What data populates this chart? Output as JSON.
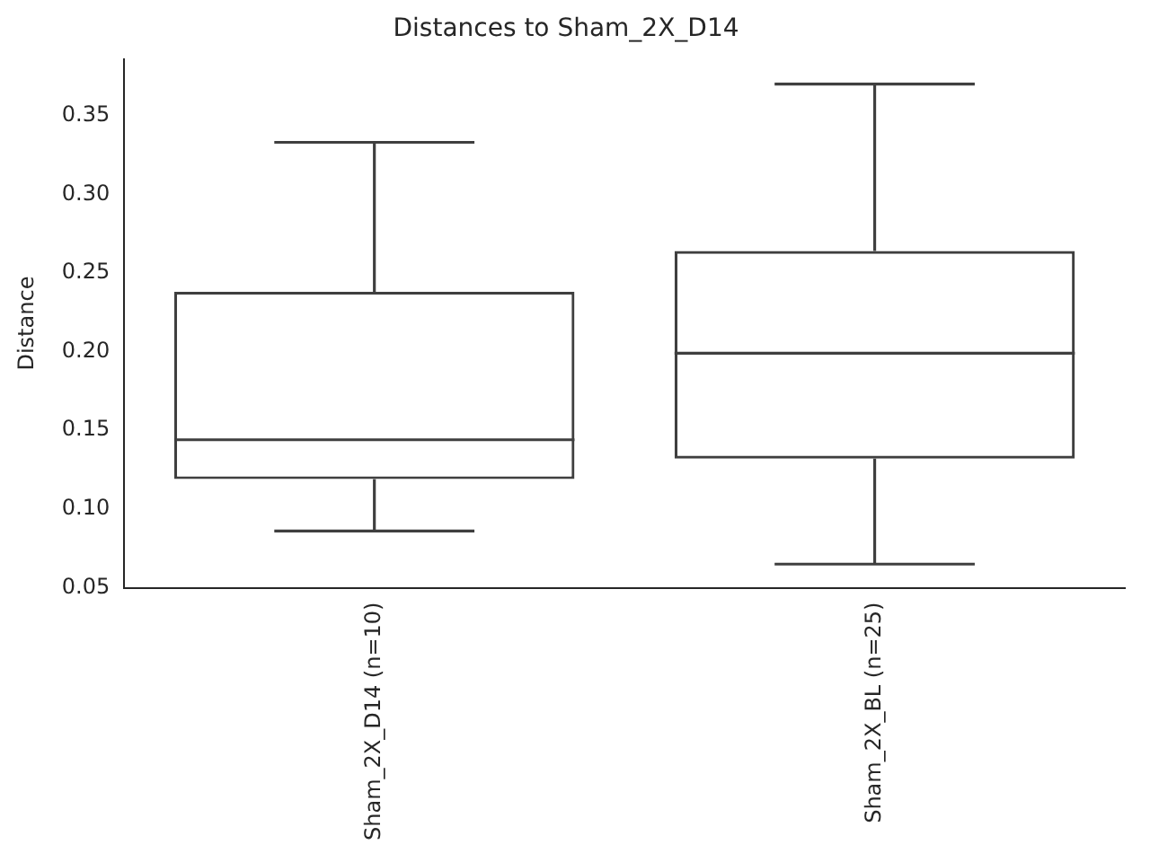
{
  "chart_data": {
    "type": "box",
    "title": "Distances to Sham_2X_D14",
    "ylabel": "Distance",
    "categories": [
      "Sham_2X_D14 (n=10)",
      "Sham_2X_BL (n=25)"
    ],
    "color": "#3f3f3f",
    "boxes": [
      {
        "low": 0.086,
        "q1": 0.119,
        "median": 0.144,
        "q3": 0.238,
        "high": 0.333
      },
      {
        "low": 0.065,
        "q1": 0.132,
        "median": 0.199,
        "q3": 0.264,
        "high": 0.37
      }
    ],
    "ylim": [
      0.05,
      0.386
    ],
    "yticks": [
      {
        "value": 0.05,
        "label": "0.05"
      },
      {
        "value": 0.1,
        "label": "0.10"
      },
      {
        "value": 0.15,
        "label": "0.15"
      },
      {
        "value": 0.2,
        "label": "0.20"
      },
      {
        "value": 0.25,
        "label": "0.25"
      },
      {
        "value": 0.3,
        "label": "0.30"
      },
      {
        "value": 0.35,
        "label": "0.35"
      }
    ]
  }
}
